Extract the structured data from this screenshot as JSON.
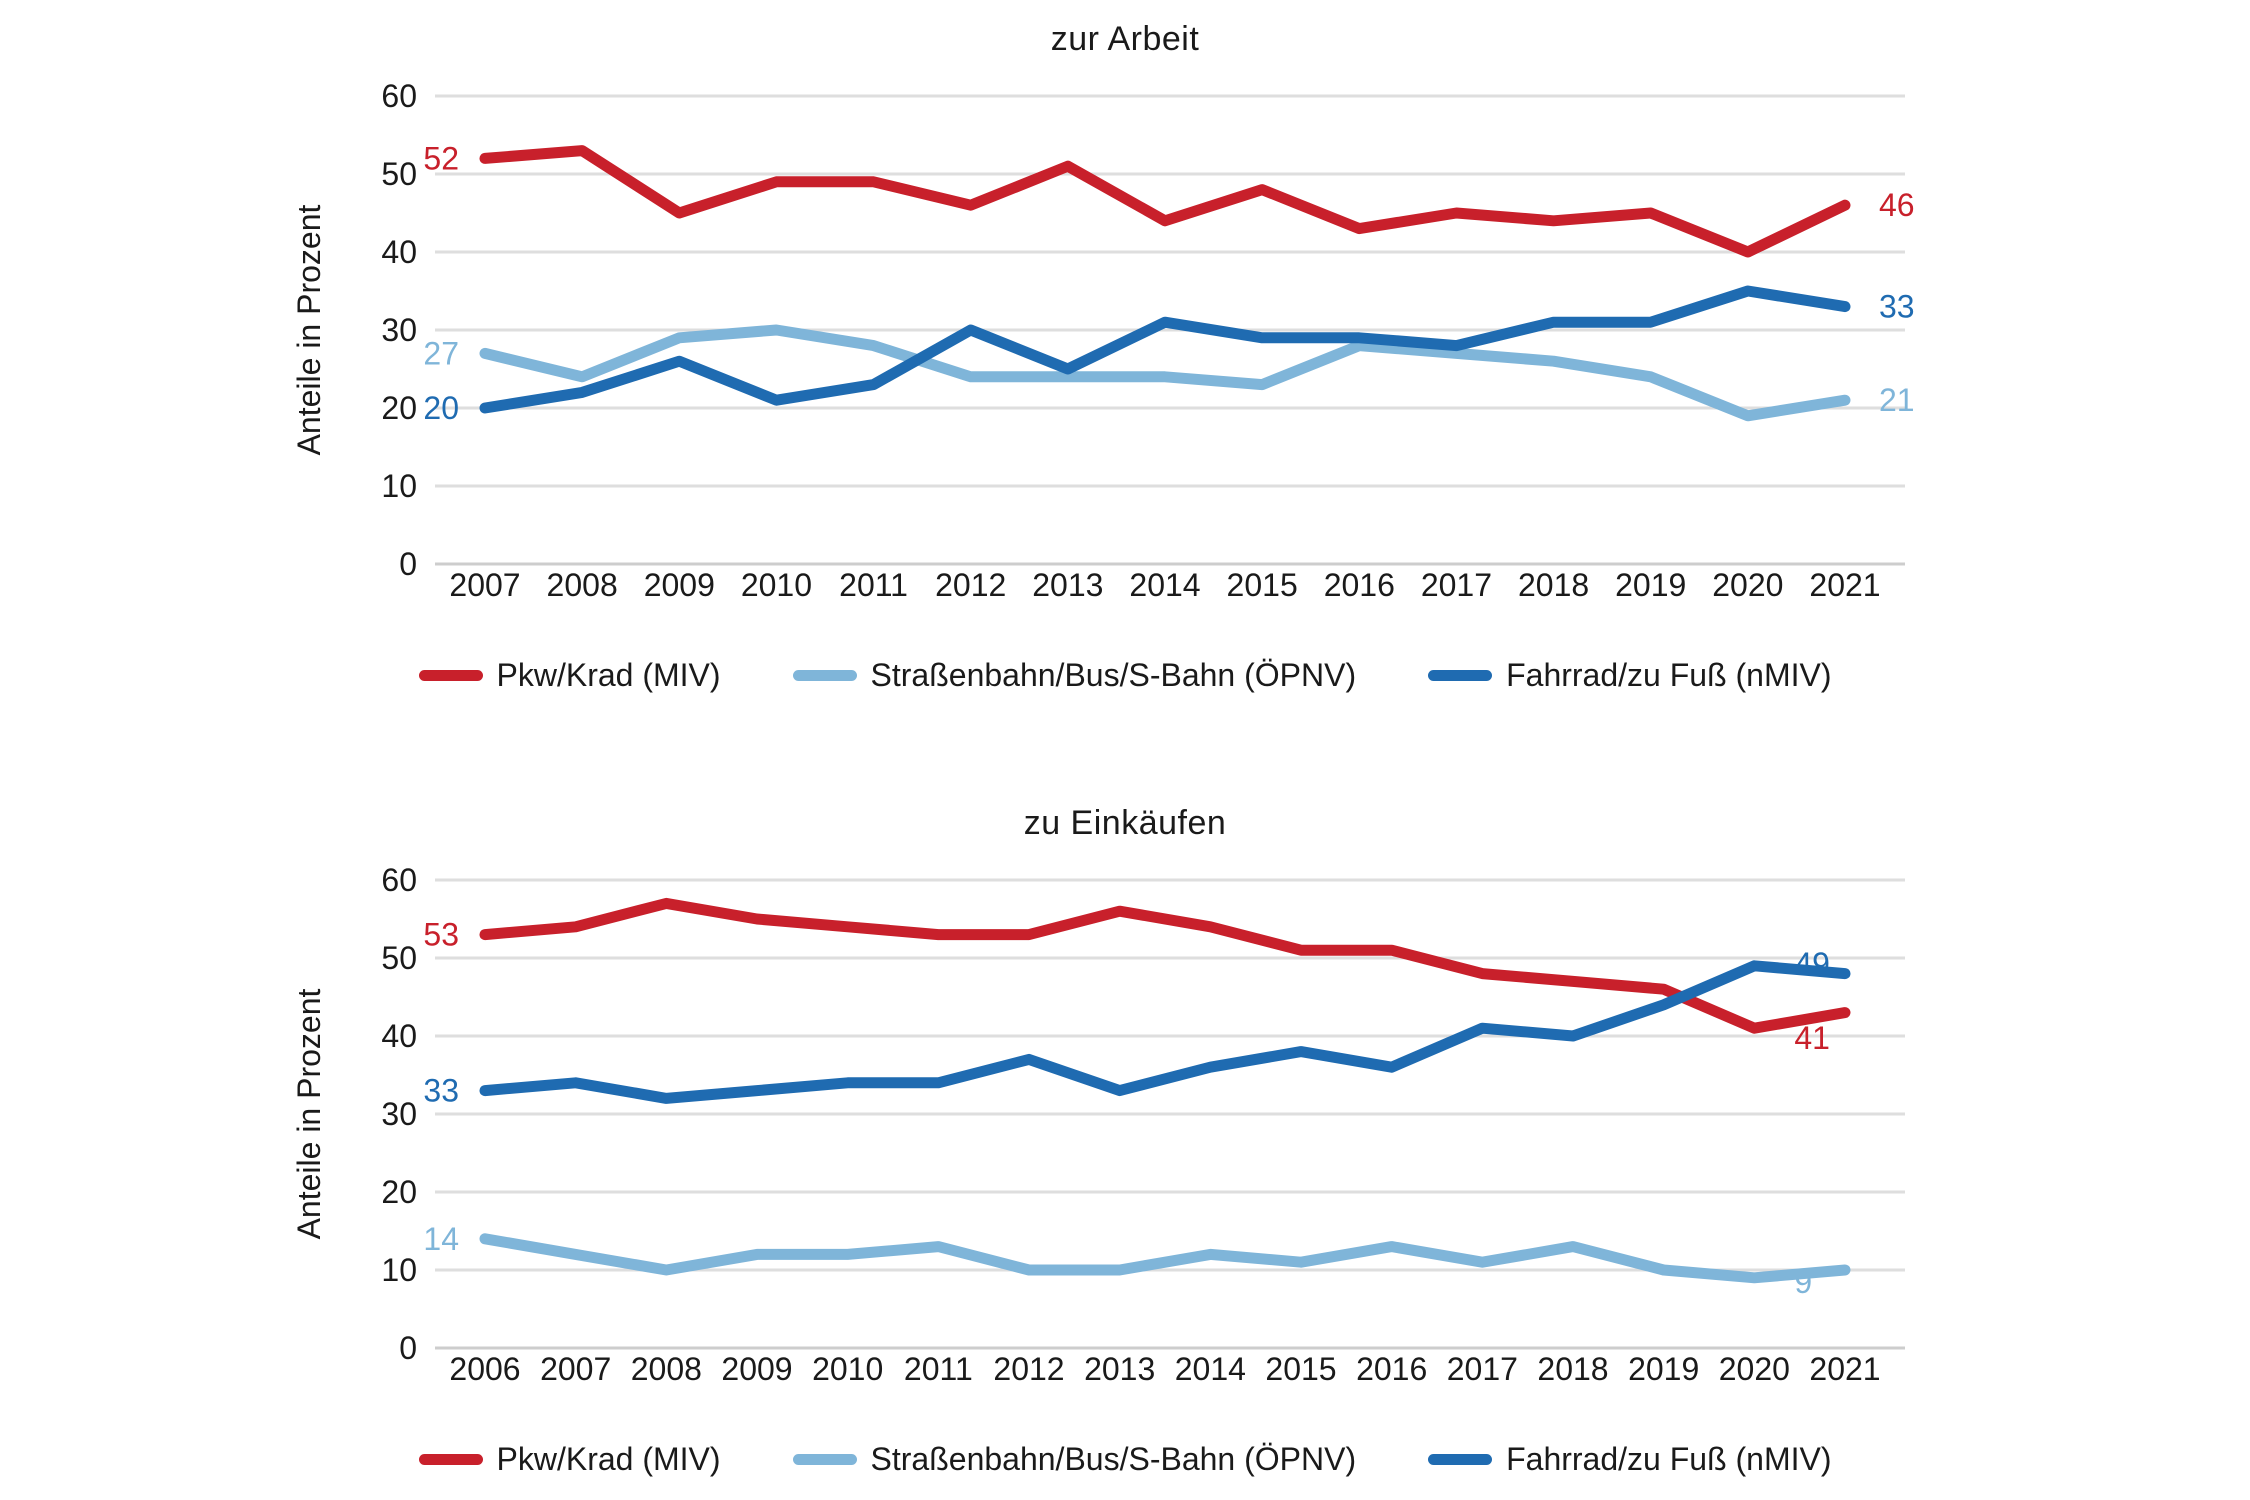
{
  "figure": {
    "background": "#ffffff",
    "gridline_color": "#dedede",
    "baseline_color": "#cdcdcd",
    "text_color": "#1a1a1a"
  },
  "chart_data": [
    {
      "type": "line",
      "title": "zur Arbeit",
      "xlabel": "",
      "ylabel": "Anteile in Prozent",
      "ylim": [
        0,
        60
      ],
      "y_ticks": [
        0,
        10,
        20,
        30,
        40,
        50,
        60
      ],
      "grid": true,
      "legend_position": "bottom",
      "categories": [
        "2007",
        "2008",
        "2009",
        "2010",
        "2011",
        "2012",
        "2013",
        "2014",
        "2015",
        "2016",
        "2017",
        "2018",
        "2019",
        "2020",
        "2021"
      ],
      "series": [
        {
          "name": "Pkw/Krad (MIV)",
          "color": "#c8202b",
          "values": [
            52,
            53,
            45,
            49,
            49,
            46,
            51,
            44,
            48,
            43,
            45,
            44,
            45,
            40,
            46
          ],
          "start_label": "52",
          "end_label": {
            "text": "46",
            "year": "2021",
            "dy": 0
          }
        },
        {
          "name": "Straßenbahn/Bus/S-Bahn (ÖPNV)",
          "color": "#7fb5d9",
          "values": [
            27,
            24,
            29,
            30,
            28,
            24,
            24,
            24,
            23,
            28,
            27,
            26,
            24,
            19,
            21
          ],
          "start_label": "27",
          "end_label": {
            "text": "21",
            "year": "2021",
            "dy": 0
          }
        },
        {
          "name": "Fahrrad/zu Fuß (nMIV)",
          "color": "#1f6bb1",
          "values": [
            20,
            22,
            26,
            21,
            23,
            30,
            25,
            31,
            29,
            29,
            28,
            31,
            31,
            35,
            33
          ],
          "start_label": "20",
          "end_label": {
            "text": "33",
            "year": "2021",
            "dy": 0
          }
        }
      ]
    },
    {
      "type": "line",
      "title": "zu Einkäufen",
      "xlabel": "",
      "ylabel": "Anteile in Prozent",
      "ylim": [
        0,
        60
      ],
      "y_ticks": [
        0,
        10,
        20,
        30,
        40,
        50,
        60
      ],
      "grid": true,
      "legend_position": "bottom",
      "categories": [
        "2006",
        "2007",
        "2008",
        "2009",
        "2010",
        "2011",
        "2012",
        "2013",
        "2014",
        "2015",
        "2016",
        "2017",
        "2018",
        "2019",
        "2020",
        "2021"
      ],
      "series": [
        {
          "name": "Pkw/Krad (MIV)",
          "color": "#c8202b",
          "values": [
            53,
            54,
            57,
            55,
            54,
            53,
            53,
            56,
            54,
            51,
            51,
            48,
            47,
            46,
            41,
            43
          ],
          "start_label": "53",
          "end_label": {
            "text": "41",
            "year": "2020",
            "dy": 10
          }
        },
        {
          "name": "Straßenbahn/Bus/S-Bahn (ÖPNV)",
          "color": "#7fb5d9",
          "values": [
            14,
            12,
            10,
            12,
            12,
            13,
            10,
            10,
            12,
            11,
            13,
            11,
            13,
            10,
            9,
            10
          ],
          "start_label": "14",
          "end_label": {
            "text": "9",
            "year": "2020",
            "dy": 4
          }
        },
        {
          "name": "Fahrrad/zu Fuß (nMIV)",
          "color": "#1f6bb1",
          "values": [
            33,
            34,
            32,
            33,
            34,
            34,
            37,
            33,
            36,
            38,
            36,
            41,
            40,
            44,
            49,
            48
          ],
          "start_label": "33",
          "end_label": {
            "text": "49",
            "year": "2020",
            "dy": -2
          }
        }
      ]
    }
  ]
}
